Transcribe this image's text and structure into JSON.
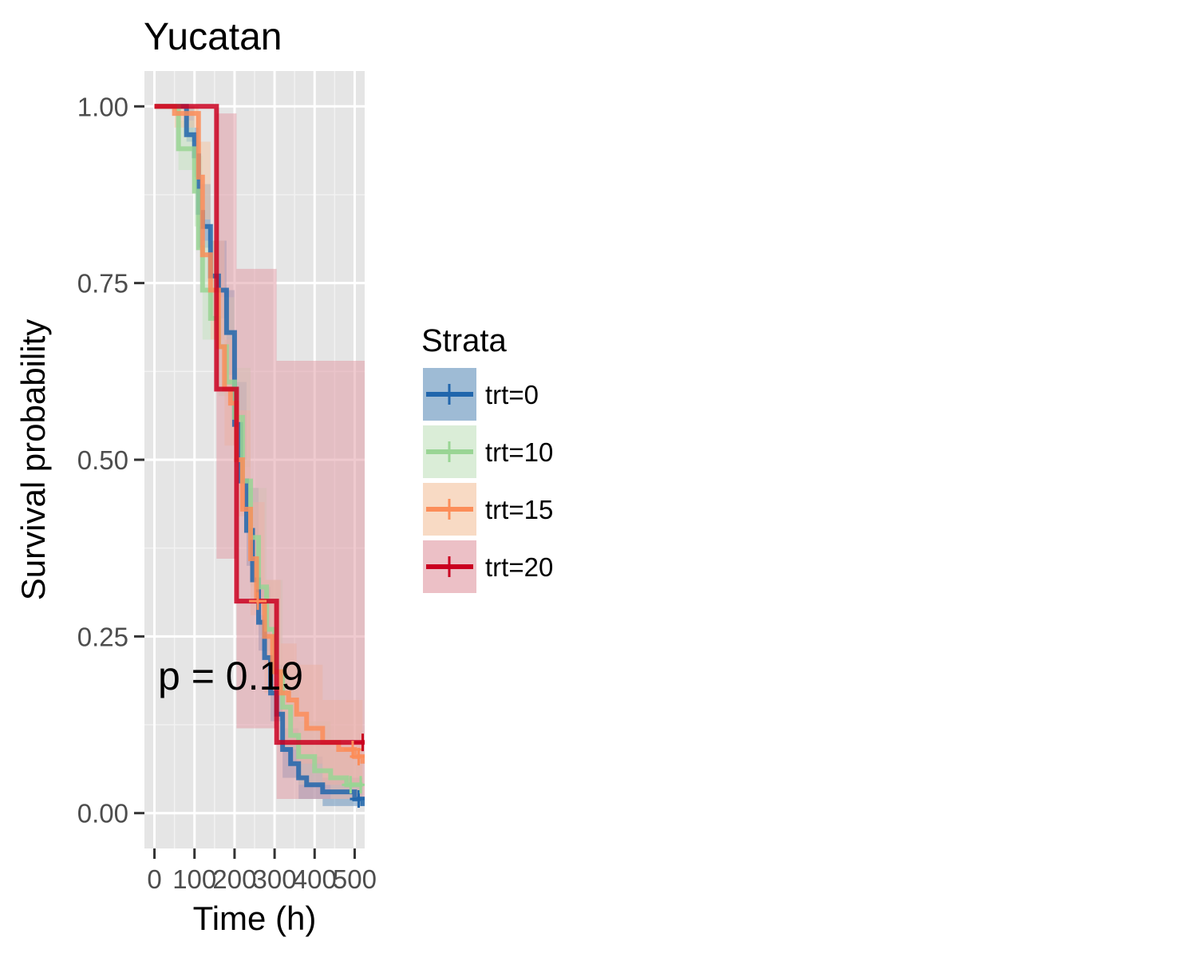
{
  "chart_data": {
    "type": "line",
    "subtype": "kaplan-meier survival curves with confidence bands",
    "title": "Yucatan",
    "xlabel": "Time (h)",
    "ylabel": "Survival probability",
    "xlim": [
      -25,
      525
    ],
    "ylim": [
      -0.05,
      1.05
    ],
    "x_ticks": [
      0,
      100,
      200,
      300,
      400,
      500
    ],
    "x_tick_labels": [
      "0",
      "100",
      "200",
      "300",
      "400",
      "500"
    ],
    "y_ticks": [
      0,
      0.25,
      0.5,
      0.75,
      1.0
    ],
    "y_tick_labels": [
      "0.00",
      "0.25",
      "0.50",
      "0.75",
      "1.00"
    ],
    "grid": true,
    "legend": {
      "title": "Strata",
      "position": "right"
    },
    "annotation": "p = 0.19",
    "series": [
      {
        "name": "trt=0",
        "color": "#2166ac",
        "band_color": "#6a96bf",
        "steps": [
          [
            0,
            1.0
          ],
          [
            80,
            1.0
          ],
          [
            80,
            0.96
          ],
          [
            100,
            0.96
          ],
          [
            100,
            0.93
          ],
          [
            110,
            0.85
          ],
          [
            120,
            0.83
          ],
          [
            140,
            0.76
          ],
          [
            160,
            0.74
          ],
          [
            180,
            0.68
          ],
          [
            200,
            0.55
          ],
          [
            215,
            0.47
          ],
          [
            230,
            0.4
          ],
          [
            245,
            0.33
          ],
          [
            260,
            0.27
          ],
          [
            275,
            0.22
          ],
          [
            290,
            0.17
          ],
          [
            305,
            0.14
          ],
          [
            320,
            0.09
          ],
          [
            340,
            0.07
          ],
          [
            360,
            0.05
          ],
          [
            380,
            0.04
          ],
          [
            420,
            0.03
          ],
          [
            460,
            0.03
          ],
          [
            500,
            0.02
          ],
          [
            520,
            0.01
          ]
        ],
        "lower": [
          [
            0,
            1.0
          ],
          [
            80,
            0.95
          ],
          [
            100,
            0.9
          ],
          [
            110,
            0.8
          ],
          [
            140,
            0.7
          ],
          [
            180,
            0.62
          ],
          [
            200,
            0.5
          ],
          [
            230,
            0.35
          ],
          [
            260,
            0.23
          ],
          [
            290,
            0.13
          ],
          [
            320,
            0.05
          ],
          [
            360,
            0.02
          ],
          [
            420,
            0.01
          ],
          [
            520,
            0.0
          ]
        ],
        "upper": [
          [
            0,
            1.0
          ],
          [
            80,
            1.0
          ],
          [
            100,
            0.97
          ],
          [
            110,
            0.89
          ],
          [
            140,
            0.81
          ],
          [
            180,
            0.74
          ],
          [
            200,
            0.61
          ],
          [
            230,
            0.46
          ],
          [
            260,
            0.32
          ],
          [
            290,
            0.21
          ],
          [
            320,
            0.12
          ],
          [
            360,
            0.08
          ],
          [
            420,
            0.05
          ],
          [
            520,
            0.03
          ]
        ],
        "censored": [
          [
            510,
            0.02
          ]
        ]
      },
      {
        "name": "trt=10",
        "color": "#99d594",
        "band_color": "#c6e3c2",
        "steps": [
          [
            0,
            1.0
          ],
          [
            60,
            1.0
          ],
          [
            60,
            0.94
          ],
          [
            90,
            0.94
          ],
          [
            100,
            0.88
          ],
          [
            110,
            0.8
          ],
          [
            120,
            0.74
          ],
          [
            140,
            0.7
          ],
          [
            160,
            0.66
          ],
          [
            180,
            0.61
          ],
          [
            200,
            0.56
          ],
          [
            220,
            0.47
          ],
          [
            240,
            0.39
          ],
          [
            260,
            0.32
          ],
          [
            280,
            0.26
          ],
          [
            300,
            0.2
          ],
          [
            320,
            0.15
          ],
          [
            340,
            0.11
          ],
          [
            360,
            0.08
          ],
          [
            400,
            0.06
          ],
          [
            440,
            0.05
          ],
          [
            480,
            0.04
          ],
          [
            520,
            0.04
          ]
        ],
        "lower": [
          [
            0,
            1.0
          ],
          [
            60,
            0.91
          ],
          [
            100,
            0.83
          ],
          [
            120,
            0.67
          ],
          [
            160,
            0.59
          ],
          [
            200,
            0.49
          ],
          [
            240,
            0.32
          ],
          [
            280,
            0.19
          ],
          [
            320,
            0.09
          ],
          [
            360,
            0.04
          ],
          [
            440,
            0.02
          ],
          [
            520,
            0.01
          ]
        ],
        "upper": [
          [
            0,
            1.0
          ],
          [
            60,
            0.98
          ],
          [
            100,
            0.93
          ],
          [
            120,
            0.81
          ],
          [
            160,
            0.73
          ],
          [
            200,
            0.63
          ],
          [
            240,
            0.46
          ],
          [
            280,
            0.33
          ],
          [
            320,
            0.21
          ],
          [
            360,
            0.13
          ],
          [
            440,
            0.09
          ],
          [
            520,
            0.08
          ]
        ],
        "censored": [
          [
            490,
            0.04
          ],
          [
            515,
            0.04
          ]
        ]
      },
      {
        "name": "trt=15",
        "color": "#fc8d59",
        "band_color": "#f4c6a5",
        "steps": [
          [
            0,
            1.0
          ],
          [
            50,
            1.0
          ],
          [
            50,
            0.99
          ],
          [
            110,
            0.99
          ],
          [
            110,
            0.9
          ],
          [
            120,
            0.79
          ],
          [
            140,
            0.74
          ],
          [
            160,
            0.66
          ],
          [
            175,
            0.6
          ],
          [
            190,
            0.58
          ],
          [
            205,
            0.5
          ],
          [
            220,
            0.43
          ],
          [
            240,
            0.36
          ],
          [
            255,
            0.3
          ],
          [
            275,
            0.25
          ],
          [
            295,
            0.2
          ],
          [
            315,
            0.17
          ],
          [
            335,
            0.16
          ],
          [
            355,
            0.14
          ],
          [
            380,
            0.12
          ],
          [
            410,
            0.12
          ],
          [
            420,
            0.1
          ],
          [
            460,
            0.09
          ],
          [
            500,
            0.08
          ],
          [
            520,
            0.07
          ]
        ],
        "lower": [
          [
            0,
            1.0
          ],
          [
            50,
            0.97
          ],
          [
            110,
            0.84
          ],
          [
            140,
            0.67
          ],
          [
            175,
            0.52
          ],
          [
            205,
            0.42
          ],
          [
            240,
            0.28
          ],
          [
            275,
            0.17
          ],
          [
            315,
            0.1
          ],
          [
            355,
            0.07
          ],
          [
            420,
            0.04
          ],
          [
            520,
            0.02
          ]
        ],
        "upper": [
          [
            0,
            1.0
          ],
          [
            50,
            1.0
          ],
          [
            110,
            0.95
          ],
          [
            140,
            0.81
          ],
          [
            175,
            0.67
          ],
          [
            205,
            0.57
          ],
          [
            240,
            0.44
          ],
          [
            275,
            0.33
          ],
          [
            315,
            0.24
          ],
          [
            355,
            0.21
          ],
          [
            420,
            0.16
          ],
          [
            520,
            0.14
          ]
        ],
        "censored": [
          [
            258,
            0.3
          ],
          [
            495,
            0.09
          ],
          [
            510,
            0.08
          ]
        ]
      },
      {
        "name": "trt=20",
        "color": "#ca0020",
        "band_color": "#e29ea8",
        "steps": [
          [
            0,
            1.0
          ],
          [
            155,
            1.0
          ],
          [
            155,
            0.6
          ],
          [
            205,
            0.6
          ],
          [
            205,
            0.3
          ],
          [
            305,
            0.3
          ],
          [
            305,
            0.1
          ],
          [
            525,
            0.1
          ]
        ],
        "lower": [
          [
            0,
            1.0
          ],
          [
            155,
            0.36
          ],
          [
            205,
            0.12
          ],
          [
            305,
            0.02
          ],
          [
            525,
            0.02
          ]
        ],
        "upper": [
          [
            0,
            1.0
          ],
          [
            155,
            0.99
          ],
          [
            205,
            0.77
          ],
          [
            305,
            0.64
          ],
          [
            525,
            0.64
          ]
        ],
        "censored": [
          [
            520,
            0.1
          ]
        ]
      }
    ]
  }
}
